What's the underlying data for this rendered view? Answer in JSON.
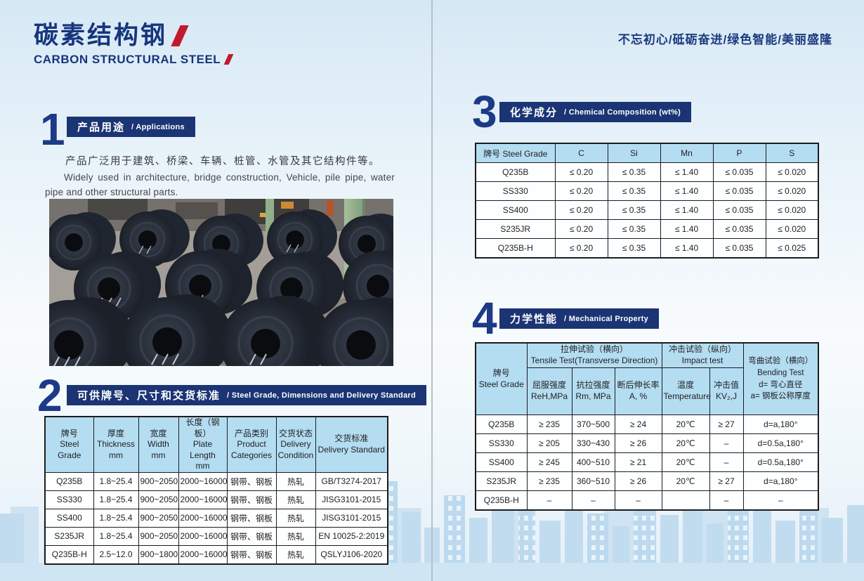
{
  "header": {
    "title_cn": "碳素结构钢",
    "title_en": "CARBON STRUCTURAL STEEL",
    "slogan": "不忘初心/砥砺奋进/绿色智能/美丽盛隆"
  },
  "colors": {
    "navy": "#1b3474",
    "accent_red": "#c01a2c",
    "table_header_blue": "#b4ddf2",
    "skyline_blue": "#bcd9ee"
  },
  "applications": {
    "number": "1",
    "title_cn": "产品用途",
    "title_en": "/ Applications",
    "body_cn": "产品广泛用于建筑、桥梁、车辆、桩管、水管及其它结构件等。",
    "body_en": "Widely used in architecture, bridge construction, Vehicle, pile pipe, water pipe and other structural parts.",
    "photo_alt": "steel coils in warehouse"
  },
  "dimensions": {
    "number": "2",
    "title_cn": "可供牌号、尺寸和交货标准",
    "title_en": "/ Steel Grade, Dimensions and Delivery Standard",
    "headers": [
      {
        "cn": "牌号",
        "l2": "Steel Grade",
        "l3": ""
      },
      {
        "cn": "厚度",
        "l2": "Thickness",
        "l3": "mm"
      },
      {
        "cn": "宽度",
        "l2": "Width",
        "l3": "mm"
      },
      {
        "cn": "长度（钢板）",
        "l2": "Plate Length",
        "l3": "mm"
      },
      {
        "cn": "产品类别",
        "l2": "Product",
        "l3": "Categories"
      },
      {
        "cn": "交货状态",
        "l2": "Delivery",
        "l3": "Condition"
      },
      {
        "cn": "交货标准",
        "l2": "Delivery Standard",
        "l3": ""
      }
    ],
    "rows": [
      [
        "Q235B",
        "1.8~25.4",
        "900~2050",
        "2000~16000",
        "钢带、钢板",
        "热轧",
        "GB/T3274-2017"
      ],
      [
        "SS330",
        "1.8~25.4",
        "900~2050",
        "2000~16000",
        "钢带、钢板",
        "热轧",
        "JISG3101-2015"
      ],
      [
        "SS400",
        "1.8~25.4",
        "900~2050",
        "2000~16000",
        "钢带、钢板",
        "热轧",
        "JISG3101-2015"
      ],
      [
        "S235JR",
        "1.8~25.4",
        "900~2050",
        "2000~16000",
        "钢带、钢板",
        "热轧",
        "EN 10025-2:2019"
      ],
      [
        "Q235B-H",
        "2.5~12.0",
        "900~1800",
        "2000~16000",
        "钢带、钢板",
        "热轧",
        "QSLYJ106-2020"
      ]
    ]
  },
  "chemical": {
    "number": "3",
    "title_cn": "化学成分",
    "title_en": "/ Chemical Composition (wt%)",
    "headers": [
      "牌号 Steel Grade",
      "C",
      "Si",
      "Mn",
      "P",
      "S"
    ],
    "rows": [
      [
        "Q235B",
        "≤ 0.20",
        "≤ 0.35",
        "≤ 1.40",
        "≤ 0.035",
        "≤ 0.020"
      ],
      [
        "SS330",
        "≤ 0.20",
        "≤ 0.35",
        "≤ 1.40",
        "≤ 0.035",
        "≤ 0.020"
      ],
      [
        "SS400",
        "≤ 0.20",
        "≤ 0.35",
        "≤ 1.40",
        "≤ 0.035",
        "≤ 0.020"
      ],
      [
        "S235JR",
        "≤ 0.20",
        "≤ 0.35",
        "≤ 1.40",
        "≤ 0.035",
        "≤ 0.020"
      ],
      [
        "Q235B-H",
        "≤ 0.20",
        "≤ 0.35",
        "≤ 1.40",
        "≤ 0.035",
        "≤ 0.025"
      ]
    ]
  },
  "mechanical": {
    "number": "4",
    "title_cn": "力学性能",
    "title_en": "/ Mechanical Property",
    "grade_header": {
      "cn": "牌号",
      "en": "Steel Grade"
    },
    "tensile_group": {
      "cn": "拉伸试验（横向）",
      "en": "Tensile Test(Transverse Direction)"
    },
    "impact_group": {
      "cn": "冲击试验（纵向）",
      "en": "Impact test"
    },
    "bending_header": {
      "l1": "弯曲试验（横向）",
      "l2": "Bending Test",
      "l3": "d= 弯心直径",
      "l4": "a= 钢板公称厚度"
    },
    "subheaders": [
      {
        "cn": "屈服强度",
        "en": "ReH,MPa"
      },
      {
        "cn": "抗拉强度",
        "en": "Rm, MPa"
      },
      {
        "cn": "断后伸长率",
        "en": "A, %"
      },
      {
        "cn": "温度",
        "en": "Temperature"
      },
      {
        "cn": "冲击值",
        "en": "KV₂,J"
      }
    ],
    "rows": [
      [
        "Q235B",
        "≥ 235",
        "370~500",
        "≥ 24",
        "20℃",
        "≥ 27",
        "d=a,180°"
      ],
      [
        "SS330",
        "≥ 205",
        "330~430",
        "≥ 26",
        "20℃",
        "–",
        "d=0.5a,180°"
      ],
      [
        "SS400",
        "≥ 245",
        "400~510",
        "≥ 21",
        "20℃",
        "–",
        "d=0.5a,180°"
      ],
      [
        "S235JR",
        "≥ 235",
        "360~510",
        "≥ 26",
        "20℃",
        "≥ 27",
        "d=a,180°"
      ],
      [
        "Q235B-H",
        "–",
        "–",
        "–",
        "",
        "–",
        "–"
      ]
    ]
  }
}
